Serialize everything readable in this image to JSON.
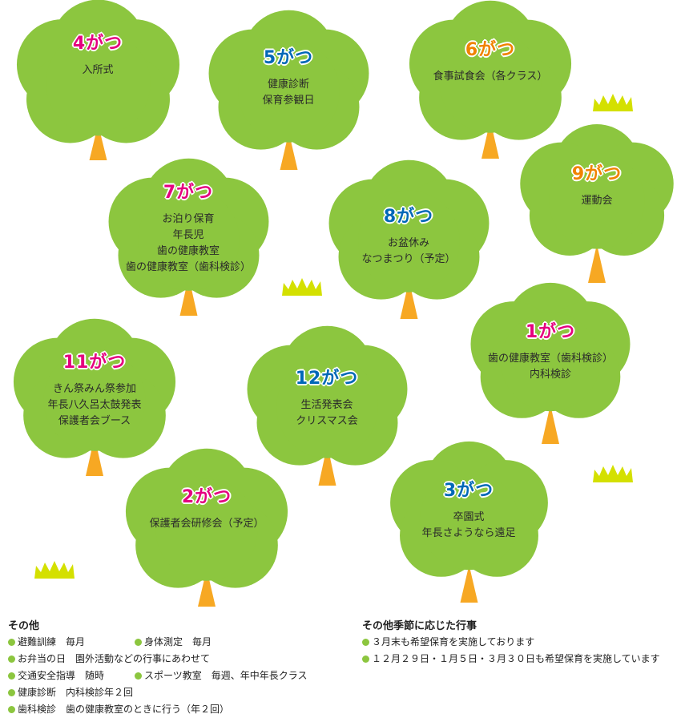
{
  "colors": {
    "foliage": "#8cc63f",
    "trunk": "#f7a823",
    "grass": "#d4e000",
    "pink": "#e4007f",
    "blue": "#0068b7",
    "orange": "#f08300"
  },
  "months": [
    {
      "label": "4がつ",
      "color": "pink",
      "events": [
        "入所式"
      ]
    },
    {
      "label": "5がつ",
      "color": "blue",
      "events": [
        "健康診断",
        "保育参観日"
      ]
    },
    {
      "label": "6がつ",
      "color": "orange",
      "events": [
        "食事試食会（各クラス）"
      ]
    },
    {
      "label": "7がつ",
      "color": "pink",
      "events": [
        "お泊り保育",
        "年長児",
        "歯の健康教室",
        "歯の健康教室（歯科検診）"
      ]
    },
    {
      "label": "8がつ",
      "color": "blue",
      "events": [
        "お盆休み",
        "なつまつり（予定）"
      ]
    },
    {
      "label": "9がつ",
      "color": "orange",
      "events": [
        "運動会"
      ]
    },
    {
      "label": "11がつ",
      "color": "pink",
      "events": [
        "きん祭みん祭参加",
        "年長八久呂太鼓発表",
        "保護者会ブース"
      ]
    },
    {
      "label": "12がつ",
      "color": "blue",
      "events": [
        "生活発表会",
        "クリスマス会"
      ]
    },
    {
      "label": "1がつ",
      "color": "pink",
      "events": [
        "歯の健康教室（歯科検診）",
        "内科検診"
      ]
    },
    {
      "label": "2がつ",
      "color": "pink",
      "events": [
        "保護者会研修会（予定）"
      ]
    },
    {
      "label": "3がつ",
      "color": "blue",
      "events": [
        "卒園式",
        "年長さようなら遠足"
      ]
    }
  ],
  "other": {
    "title": "その他",
    "rows": [
      [
        "避難訓練　毎月",
        "身体測定　毎月"
      ],
      [
        "お弁当の日　園外活動などの行事にあわせて"
      ],
      [
        "交通安全指導　随時",
        "スポーツ教室　毎週、年中年長クラス"
      ],
      [
        "健康診断　内科検診年２回"
      ],
      [
        "歯科検診　歯の健康教室のときに行う（年２回）"
      ]
    ]
  },
  "seasonal": {
    "title": "その他季節に応じた行事",
    "items": [
      "３月末も希望保育を実施しております",
      "１２月２９日・１月５日・３月３０日も希望保育を実施しています"
    ]
  }
}
